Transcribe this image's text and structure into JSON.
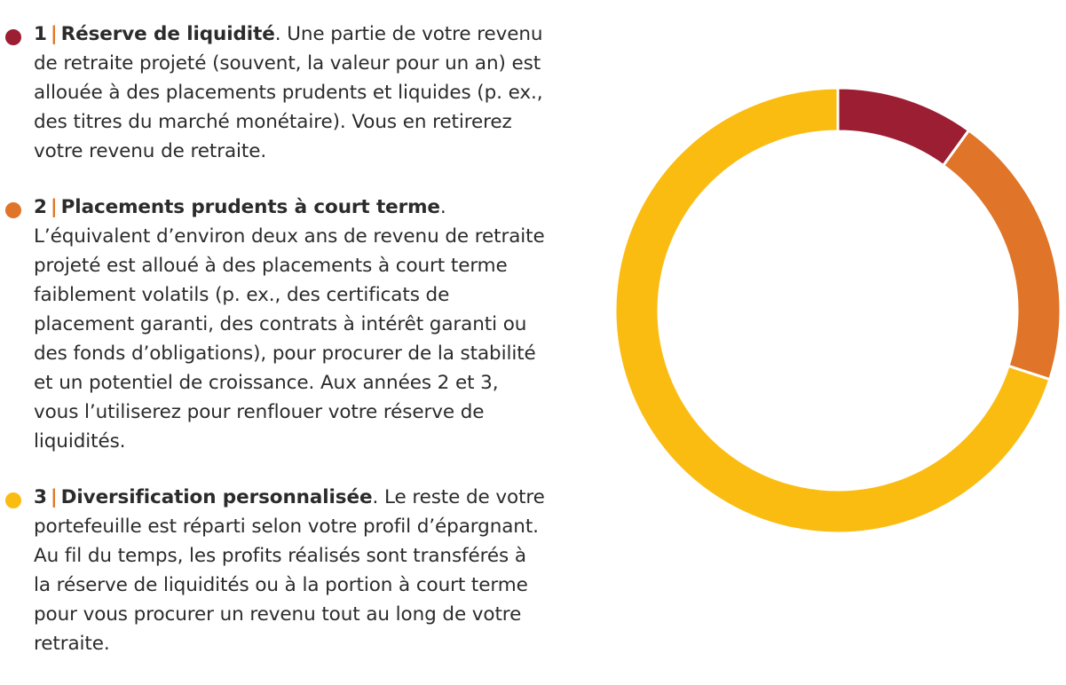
{
  "legend": {
    "items": [
      {
        "num": "1",
        "sep": "|",
        "title": "Réserve de liquidité",
        "text": ". Une partie de votre revenu de retraite projeté (souvent, la valeur pour un an) est allouée à des placements prudents et liquides (p. ex., des titres du marché monétaire). Vous en retirerez votre revenu de retraite.",
        "color": "#9b1e32",
        "sep_color": "#e07828"
      },
      {
        "num": "2",
        "sep": "|",
        "title": "Placements prudents à court terme",
        "text": ". L’équivalent d’environ deux ans de revenu de retraite projeté est alloué à des placements à court terme faiblement volatils (p. ex., des certificats de placement garanti, des contrats à intérêt garanti ou des fonds d’obligations), pour procurer de la stabilité et un potentiel de croissance. Aux années 2 et 3, vous l’utiliserez pour renflouer votre réserve de liquidités.",
        "color": "#e07428",
        "sep_color": "#e07828"
      },
      {
        "num": "3",
        "sep": "|",
        "title": "Diversification personnalisée",
        "text": ". Le reste de votre portefeuille est réparti selon votre profil d’épargnant. Au fil du temps, les profits réalisés sont transférés à la réserve de liquidités ou à la portion à court terme pour vous procurer un revenu tout au long de votre retraite.",
        "color": "#fbbc12",
        "sep_color": "#e07828"
      }
    ]
  },
  "chart_data": {
    "type": "pie",
    "style": "donut",
    "title": "",
    "categories": [
      "Réserve de liquidité",
      "Placements prudents à court terme",
      "Diversification personnalisée"
    ],
    "values": [
      10,
      20,
      70
    ],
    "colors": [
      "#9b1e32",
      "#e07428",
      "#fbbc12"
    ],
    "start_angle": "top",
    "direction": "clockwise"
  }
}
